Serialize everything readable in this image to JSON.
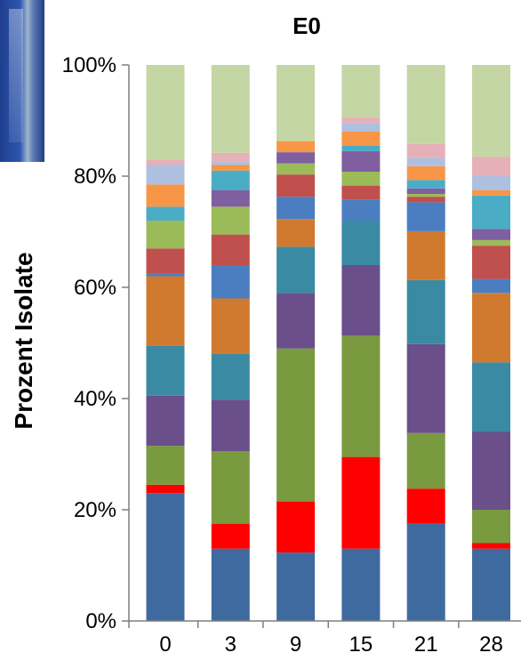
{
  "chart_data": {
    "type": "bar",
    "stacked": true,
    "title": "E0",
    "xlabel": "",
    "ylabel": "Prozent Isolate",
    "categories": [
      "0",
      "3",
      "9",
      "15",
      "21",
      "28"
    ],
    "y_ticks": [
      "0%",
      "20%",
      "40%",
      "60%",
      "80%",
      "100%"
    ],
    "ylim": [
      0,
      100
    ],
    "grid": false,
    "legend": "none",
    "stack_top_color": "#c4d6a4",
    "segments": [
      {
        "color": "#3f6aa0",
        "values": [
          23.0,
          13.0,
          12.3,
          13.0,
          17.5,
          13.0
        ]
      },
      {
        "color": "#ff0000",
        "values": [
          1.5,
          4.5,
          9.2,
          16.5,
          6.3,
          1.0
        ]
      },
      {
        "color": "#7a9a40",
        "values": [
          7.0,
          13.0,
          27.5,
          21.8,
          10.0,
          6.0
        ]
      },
      {
        "color": "#6a4f8a",
        "values": [
          9.0,
          9.3,
          10.0,
          12.7,
          16.0,
          14.0
        ]
      },
      {
        "color": "#3a8aa3",
        "values": [
          9.0,
          8.2,
          8.3,
          8.0,
          11.5,
          12.5
        ]
      },
      {
        "color": "#d07a30",
        "values": [
          12.5,
          10.0,
          5.0,
          0.0,
          8.8,
          12.5
        ]
      },
      {
        "color": "#4a7ec0",
        "values": [
          0.5,
          6.0,
          4.0,
          3.8,
          5.2,
          2.5
        ]
      },
      {
        "color": "#c0504d",
        "values": [
          4.5,
          5.5,
          4.0,
          2.5,
          1.0,
          6.0
        ]
      },
      {
        "color": "#9bbb59",
        "values": [
          5.0,
          5.0,
          2.0,
          2.5,
          0.5,
          1.0
        ]
      },
      {
        "color": "#7f5fa0",
        "values": [
          0.0,
          3.0,
          2.0,
          3.7,
          1.0,
          2.0
        ]
      },
      {
        "color": "#4bacc6",
        "values": [
          2.5,
          3.5,
          0.0,
          1.0,
          1.5,
          6.0
        ]
      },
      {
        "color": "#f79646",
        "values": [
          4.0,
          1.0,
          2.0,
          2.5,
          2.5,
          1.0
        ]
      },
      {
        "color": "#aec0e0",
        "values": [
          3.5,
          0.7,
          0.0,
          1.5,
          1.5,
          2.5
        ]
      },
      {
        "color": "#e6b0b8",
        "values": [
          1.0,
          1.5,
          0.0,
          1.0,
          2.5,
          3.5
        ]
      }
    ]
  }
}
